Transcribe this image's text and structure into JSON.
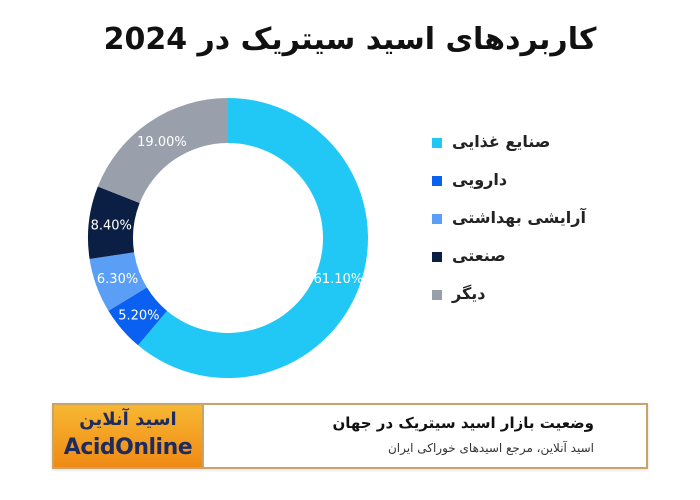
{
  "chart_data": {
    "type": "pie",
    "title": "کاربردهای اسید سیتریک در 2024",
    "categories": [
      "صنایع غذایی",
      "دارویی",
      "آرایشی بهداشتی",
      "صنعتی",
      "دیگر"
    ],
    "values": [
      61.1,
      5.2,
      6.3,
      8.4,
      19.0
    ],
    "data_labels": [
      "61.10%",
      "5.20%",
      "6.30%",
      "8.40%",
      "19.00%"
    ],
    "colors": [
      "#22c8f5",
      "#0a60f0",
      "#5a9ef5",
      "#0b1f45",
      "#9aa0ab"
    ],
    "donut": true,
    "legend_position": "right"
  },
  "banner": {
    "title": "وضعیت بازار اسید سیتریک در جهان",
    "subtitle": "اسید آنلاین، مرجع اسیدهای خوراکی ایران",
    "logo_fa": "اسید آنلاین",
    "logo_en": "AcidOnline"
  }
}
